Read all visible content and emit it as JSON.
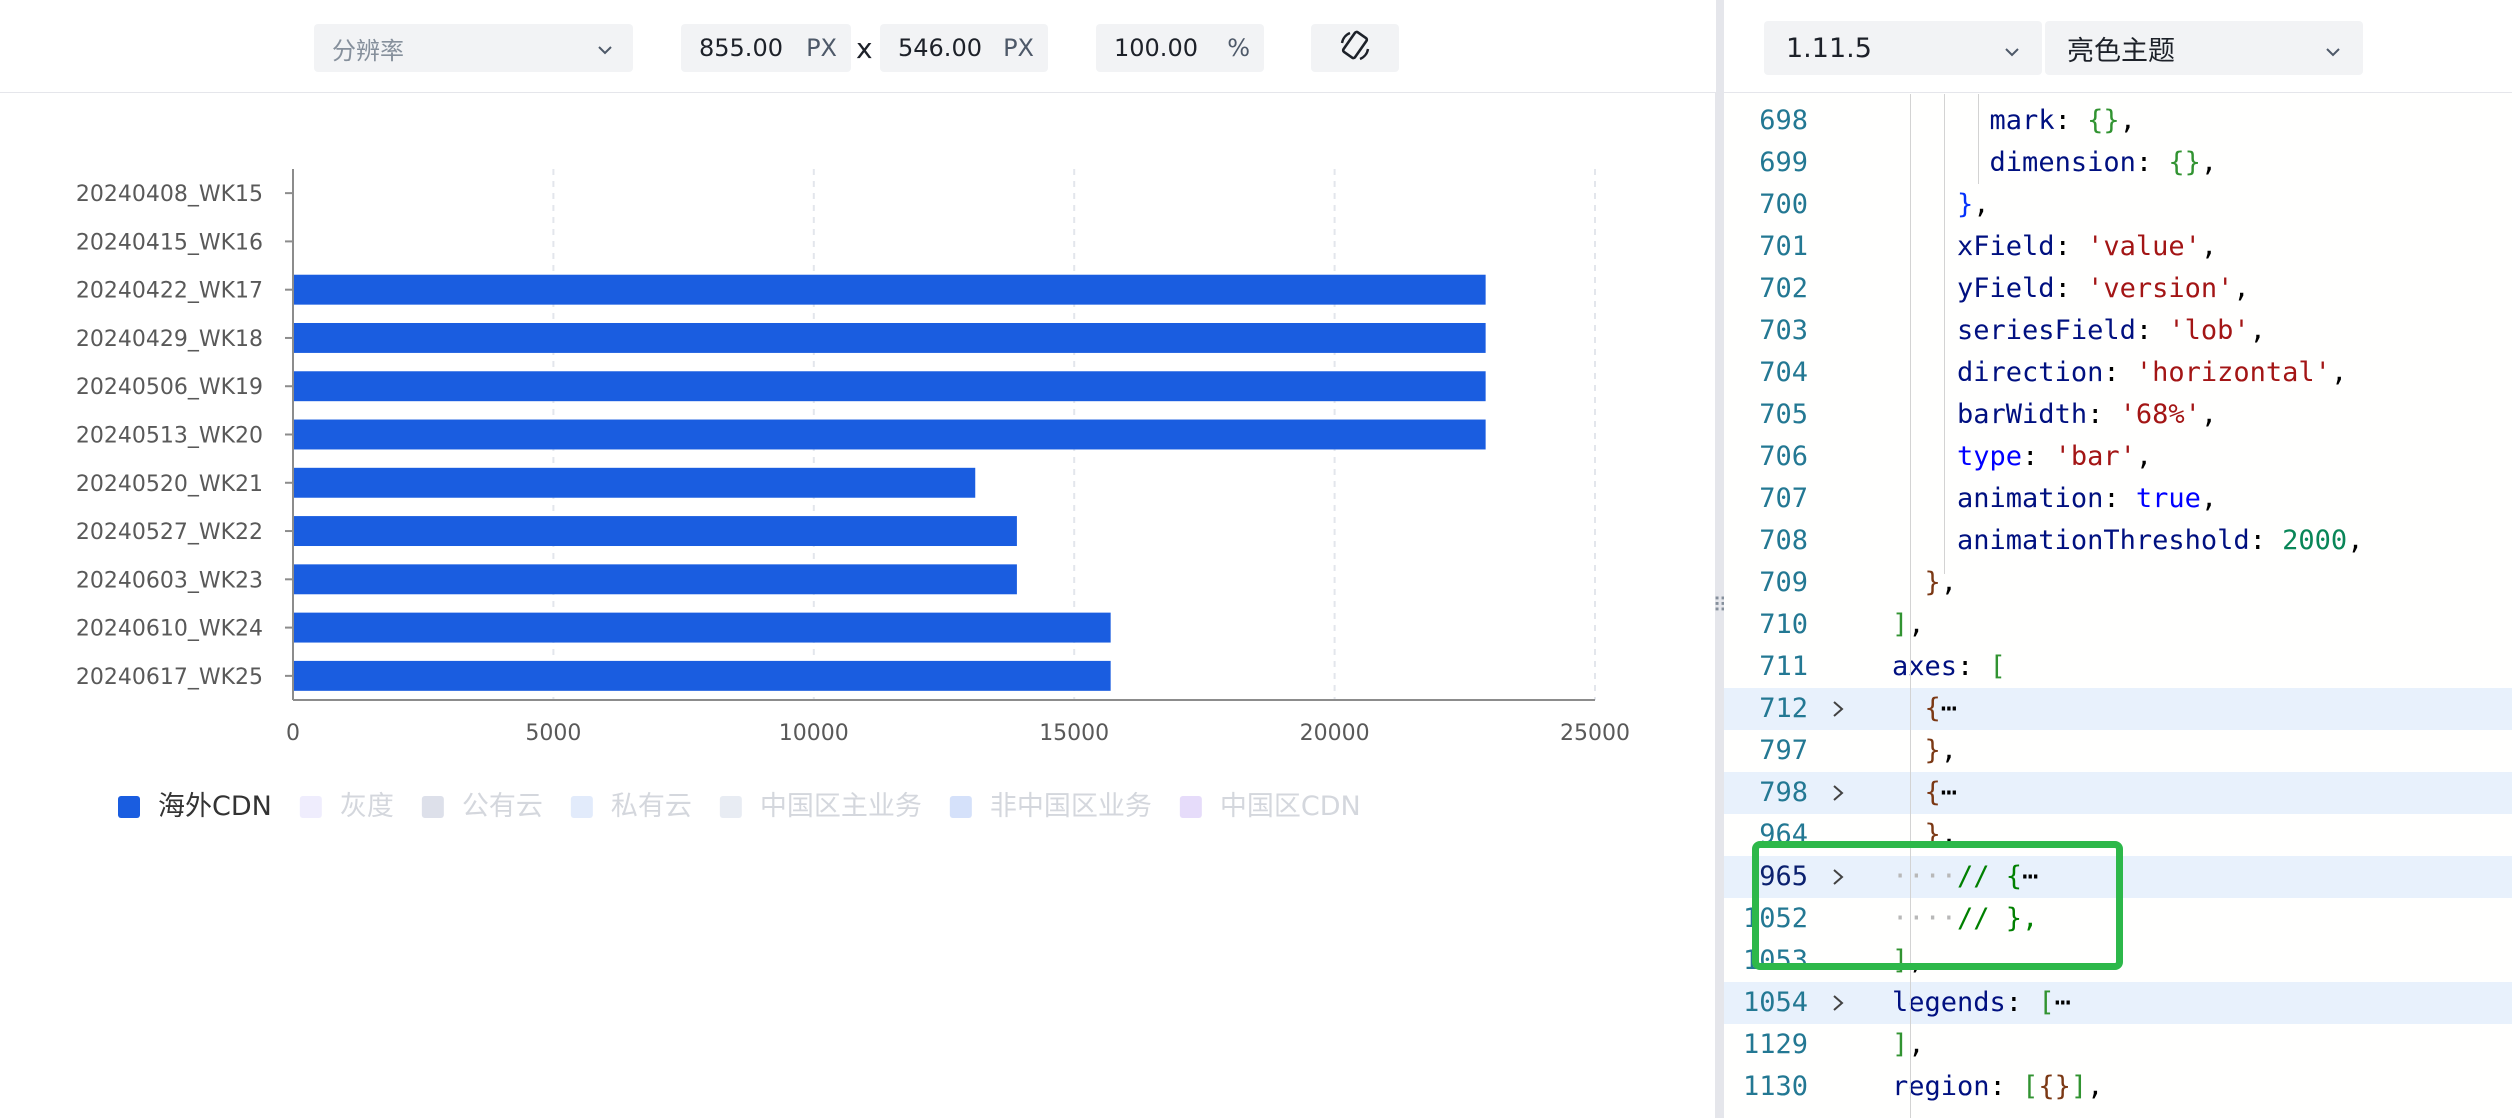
{
  "toolbar": {
    "resolution_placeholder": "分辨率",
    "width_value": "855.00",
    "width_unit": "PX",
    "separator": "x",
    "height_value": "546.00",
    "height_unit": "PX",
    "zoom_value": "100.00",
    "zoom_unit": "%",
    "rotate_icon": "rotate-screen-icon"
  },
  "right_toolbar": {
    "version": "1.11.5",
    "theme": "亮色主题"
  },
  "chart_data": {
    "type": "bar",
    "direction": "horizontal",
    "categories": [
      "20240408_WK15",
      "20240415_WK16",
      "20240422_WK17",
      "20240429_WK18",
      "20240506_WK19",
      "20240513_WK20",
      "20240520_WK21",
      "20240527_WK22",
      "20240603_WK23",
      "20240610_WK24",
      "20240617_WK25"
    ],
    "series": [
      {
        "name": "海外CDN",
        "color": "#1a5de0",
        "values": [
          0,
          0,
          22900,
          22900,
          22900,
          22900,
          13100,
          13900,
          13900,
          15700,
          15700
        ]
      }
    ],
    "x_ticks": [
      "0",
      "5000",
      "10000",
      "15000",
      "20000",
      "25000"
    ],
    "xlim": [
      0,
      25000
    ],
    "grid": "vertical dashed",
    "legend": {
      "position": "bottom-left",
      "items": [
        {
          "name": "海外CDN",
          "color": "#1a5de0",
          "active": true
        },
        {
          "name": "灰度",
          "color": "#efedfd",
          "active": false
        },
        {
          "name": "公有云",
          "color": "#dde0ea",
          "active": false
        },
        {
          "name": "私有云",
          "color": "#e2ebfb",
          "active": false
        },
        {
          "name": "中国区主业务",
          "color": "#e8ecf3",
          "active": false
        },
        {
          "name": "非中国区业务",
          "color": "#d5e1fa",
          "active": false
        },
        {
          "name": "中国区CDN",
          "color": "#e6dcfa",
          "active": false
        }
      ]
    }
  },
  "editor": {
    "lines": [
      {
        "num": "698",
        "html": "      <span class='k'>mark</span>: <span class='br1'>{}</span>,"
      },
      {
        "num": "699",
        "html": "      <span class='k'>dimension</span>: <span class='br1'>{}</span>,"
      },
      {
        "num": "700",
        "html": "    <span class='br3'>}</span>,"
      },
      {
        "num": "701",
        "html": "    <span class='k'>xField</span>: <span class='s'>'value'</span>,"
      },
      {
        "num": "702",
        "html": "    <span class='k'>yField</span>: <span class='s'>'version'</span>,"
      },
      {
        "num": "703",
        "html": "    <span class='k'>seriesField</span>: <span class='s'>'lob'</span>,"
      },
      {
        "num": "704",
        "html": "    <span class='k'>direction</span>: <span class='s'>'horizontal'</span>,"
      },
      {
        "num": "705",
        "html": "    <span class='k'>barWidth</span>: <span class='s'>'68%'</span>,"
      },
      {
        "num": "706",
        "html": "    <span class='b'>type</span>: <span class='s'>'bar'</span>,"
      },
      {
        "num": "707",
        "html": "    <span class='k'>animation</span>: <span class='b'>true</span>,"
      },
      {
        "num": "708",
        "html": "    <span class='k'>animationThreshold</span>: <span class='n'>2000</span>,"
      },
      {
        "num": "709",
        "html": "  <span class='br2'>}</span>,"
      },
      {
        "num": "710",
        "html": "<span class='br1'>]</span>,"
      },
      {
        "num": "711",
        "html": "<span class='k'>axes</span>: <span class='br1'>[</span>"
      },
      {
        "num": "712",
        "html": "  <span class='br2'>{</span>⋯",
        "fold": true,
        "hl": true
      },
      {
        "num": "797",
        "html": "  <span class='br2'>}</span>,"
      },
      {
        "num": "798",
        "html": "  <span class='br2'>{</span>⋯",
        "fold": true,
        "hl": true
      },
      {
        "num": "964",
        "html": "  <span class='br2'>}</span>,"
      },
      {
        "num": "965",
        "html": "<span style='color:#b8b8b8'>····</span><span class='c'>// {</span>⋯",
        "fold": true,
        "hl": true,
        "active": true
      },
      {
        "num": "1052",
        "html": "<span style='color:#b8b8b8'>····</span><span class='c'>// },</span>"
      },
      {
        "num": "1053",
        "html": "<span class='br1'>]</span>,"
      },
      {
        "num": "1054",
        "html": "<span class='k'>legends</span>: <span class='br1'>[</span>⋯",
        "fold": true,
        "hl": true
      },
      {
        "num": "1129",
        "html": "<span class='br1'>]</span>,"
      },
      {
        "num": "1130",
        "html": "<span class='k'>region</span>: <span class='br1'>[</span><span class='br2'>{}</span><span class='br1'>]</span>,"
      }
    ]
  }
}
